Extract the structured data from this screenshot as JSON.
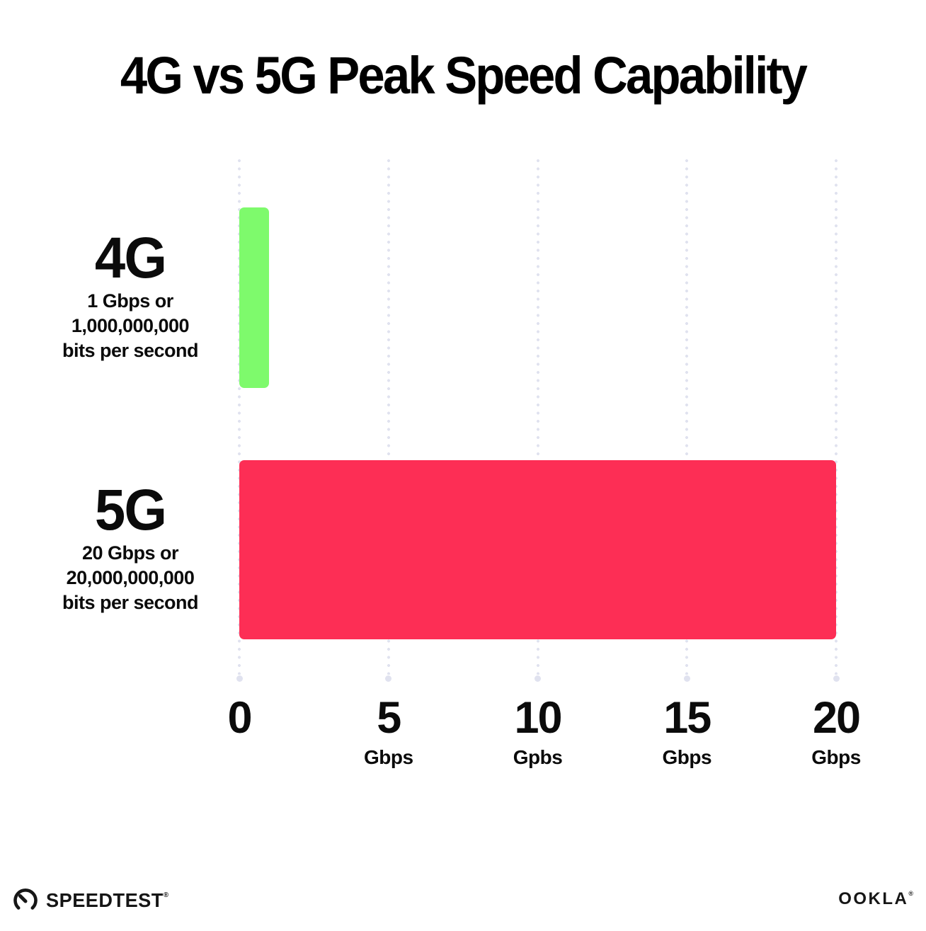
{
  "title": "4G vs 5G Peak Speed Capability",
  "chart_data": {
    "type": "bar",
    "orientation": "horizontal",
    "title": "4G vs 5G Peak Speed Capability",
    "xlabel": "",
    "ylabel": "",
    "xlim": [
      0,
      20
    ],
    "grid": "dotted-vertical",
    "legend": "none",
    "x_ticks": [
      {
        "value": 0,
        "label": "0",
        "unit": ""
      },
      {
        "value": 5,
        "label": "5",
        "unit": "Gbps"
      },
      {
        "value": 10,
        "label": "10",
        "unit": "Gpbs"
      },
      {
        "value": 15,
        "label": "15",
        "unit": "Gbps"
      },
      {
        "value": 20,
        "label": "20",
        "unit": "Gbps"
      }
    ],
    "rows": [
      {
        "id": "4g",
        "label": "4G",
        "sublabel_lines": [
          "1 Gbps or",
          "1,000,000,000",
          "bits per second"
        ],
        "value": 1,
        "color": "#7EFA6C"
      },
      {
        "id": "5g",
        "label": "5G",
        "sublabel_lines": [
          "20 Gbps or",
          "20,000,000,000",
          "bits per second"
        ],
        "value": 20,
        "color": "#FD2E55"
      }
    ]
  },
  "footer": {
    "speedtest_label": "SPEEDTEST",
    "speedtest_trademark": "®",
    "ookla_label": "OOKLA",
    "ookla_trademark": "®"
  },
  "colors": {
    "bar_4g": "#7EFA6C",
    "bar_5g": "#FD2E55",
    "gridline_dot": "#E0E2EF",
    "text": "#0B0B0B",
    "background": "#FFFFFF"
  }
}
